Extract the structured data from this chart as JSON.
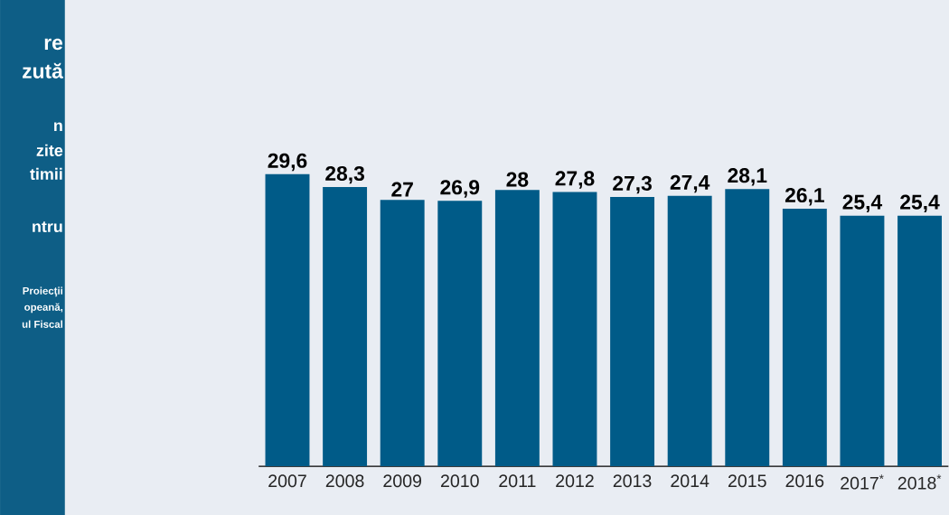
{
  "chart_data": {
    "type": "bar",
    "categories": [
      "2007",
      "2008",
      "2009",
      "2010",
      "2011",
      "2012",
      "2013",
      "2014",
      "2015",
      "2016",
      "2017$^{*}$",
      "2018$^{*}$"
    ],
    "values": [
      29.6,
      28.3,
      27,
      26.9,
      28,
      27.8,
      27.3,
      27.4,
      28.1,
      26.1,
      25.4,
      25.4
    ],
    "value_labels": [
      "29,6",
      "28,3",
      "27",
      "26,9",
      "28",
      "27,8",
      "27,3",
      "27,4",
      "28,1",
      "26,1",
      "25,4",
      "25,4"
    ],
    "color": "#005b88",
    "annotations": [
      "re",
      "zută",
      "n",
      "zite",
      "timii",
      "ntru",
      "Proiecţii",
      "opeană,",
      "ul Fiscal"
    ],
    "grid": false
  }
}
